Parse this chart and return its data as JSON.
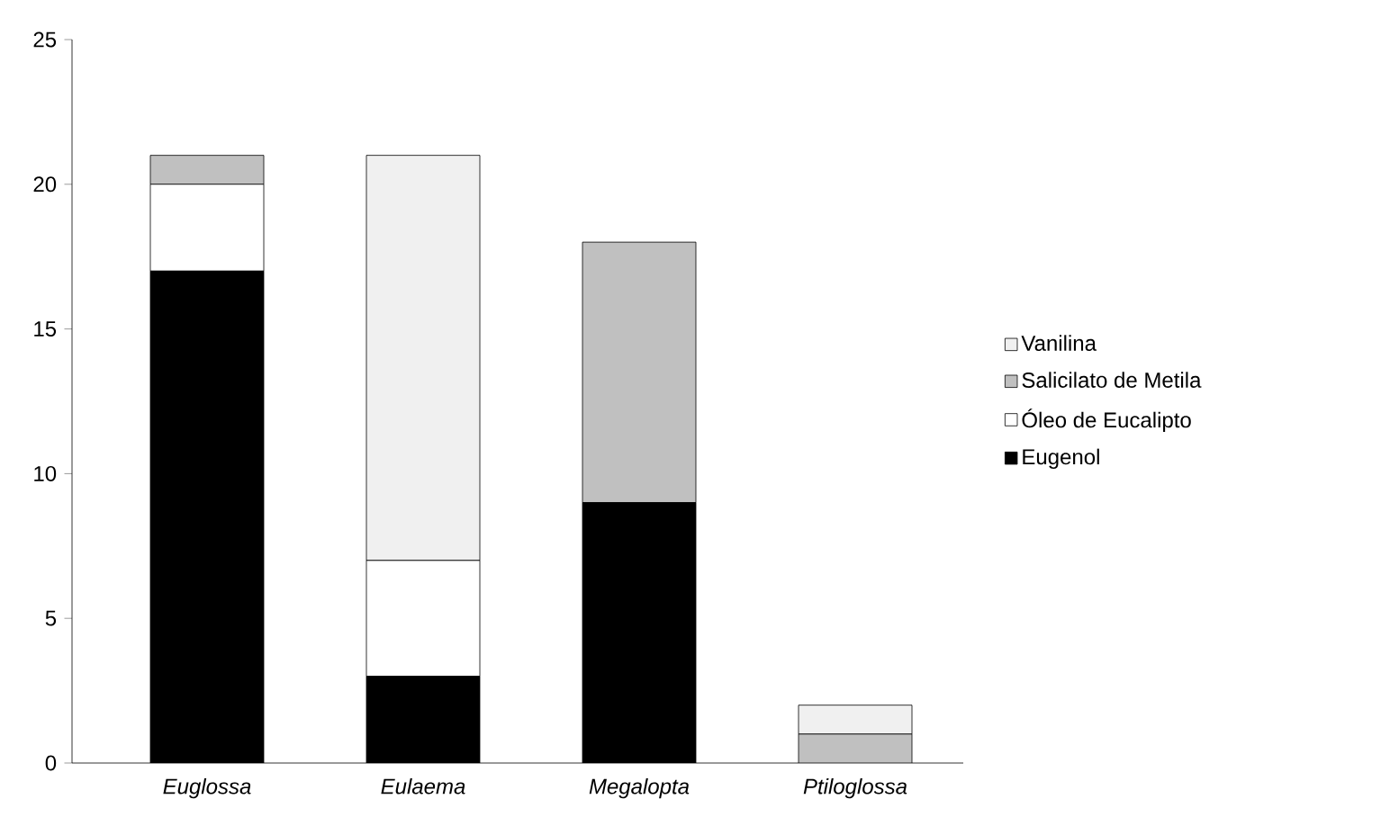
{
  "chart_data": {
    "type": "bar",
    "stacked": true,
    "categories": [
      "Euglossa",
      "Eulaema",
      "Megalopta",
      "Ptiloglossa"
    ],
    "series": [
      {
        "name": "Eugenol",
        "color": "#000000",
        "values": [
          17,
          3,
          9,
          0
        ]
      },
      {
        "name": "Óleo de Eucalipto",
        "color": "#ffffff",
        "values": [
          3,
          4,
          0,
          0
        ]
      },
      {
        "name": "Salicilato de Metila",
        "color": "#c0c0c0",
        "values": [
          1,
          0,
          9,
          1
        ]
      },
      {
        "name": "Vanilina",
        "color": "#f0f0f0",
        "values": [
          0,
          14,
          0,
          1
        ]
      }
    ],
    "ylim": [
      0,
      25
    ],
    "yticks": [
      0,
      5,
      10,
      15,
      20,
      25
    ],
    "grid": false,
    "legend": "right"
  }
}
